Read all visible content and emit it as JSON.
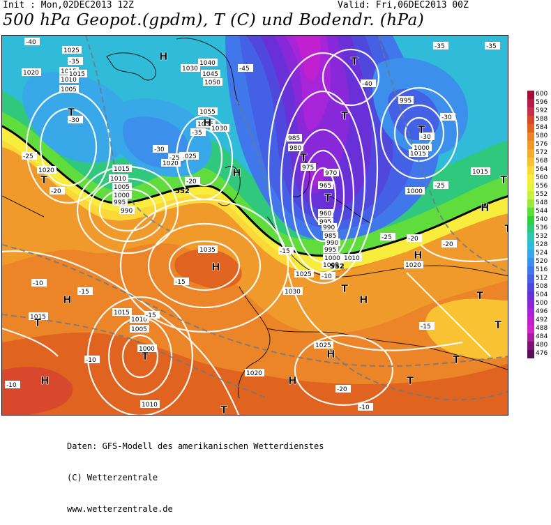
{
  "header": {
    "init": "Init : Mon,02DEC2013 12Z",
    "valid": "Valid: Fri,06DEC2013 00Z",
    "title": "500 hPa Geopot.(gpdm), T (C) und Bodendr. (hPa)"
  },
  "credits": [
    "Daten: GFS-Modell des amerikanischen Wetterdienstes",
    "(C) Wetterzentrale",
    "www.wetterzentrale.de"
  ],
  "legend": {
    "levels": [
      "600",
      "596",
      "592",
      "588",
      "584",
      "580",
      "576",
      "572",
      "568",
      "564",
      "560",
      "556",
      "552",
      "548",
      "544",
      "540",
      "536",
      "532",
      "528",
      "524",
      "520",
      "516",
      "512",
      "508",
      "504",
      "500",
      "496",
      "492",
      "488",
      "484",
      "480",
      "476"
    ],
    "colors": [
      "#a0103a",
      "#b81c48",
      "#c8304a",
      "#d8482c",
      "#e06420",
      "#ec8428",
      "#f09a2c",
      "#f4ac30",
      "#f8c232",
      "#fcd838",
      "#f8ec3c",
      "#e8f43c",
      "#c8f040",
      "#9ce840",
      "#60dc3c",
      "#30d038",
      "#30c87c",
      "#30c8b4",
      "#30bcd8",
      "#38a8e8",
      "#3c90ec",
      "#4078ec",
      "#4460e4",
      "#5048dc",
      "#6a30d8",
      "#8828d8",
      "#a824d8",
      "#c020d0",
      "#d024c8",
      "#a81ca0",
      "#7c1478",
      "#5a0c5a"
    ]
  },
  "map": {
    "pressure_labels": [
      "1025",
      "1020",
      "1015",
      "1010",
      "1005",
      "1030",
      "1040",
      "1045",
      "1050",
      "1055",
      "1035",
      "1025",
      "1020",
      "1015",
      "1010",
      "1005",
      "1000",
      "995",
      "990",
      "985",
      "980",
      "975",
      "970",
      "965",
      "960",
      "995",
      "990",
      "985",
      "990",
      "995",
      "1000",
      "1005",
      "1010",
      "1015",
      "1000",
      "995",
      "1000",
      "1015",
      "1020",
      "1030",
      "1035",
      "1030",
      "1025",
      "1020",
      "1015",
      "1010",
      "1005",
      "1000",
      "1015",
      "1010",
      "1025",
      "1020",
      "1015"
    ],
    "temperature_labels": [
      "-40",
      "-35",
      "-30",
      "-25",
      "-20",
      "-15",
      "-10",
      "-45",
      "-40",
      "-35",
      "-30",
      "-25",
      "-20",
      "-15",
      "-10",
      "-35",
      "-30",
      "-25",
      "-20",
      "-15",
      "-10",
      "-20",
      "-15",
      "-10",
      "-35",
      "-30",
      "-25",
      "-20",
      "-15",
      "-10"
    ],
    "centers": [
      {
        "label": "H"
      },
      {
        "label": "H"
      },
      {
        "label": "T"
      },
      {
        "label": "T"
      },
      {
        "label": "H"
      },
      {
        "label": "T"
      },
      {
        "label": "T"
      },
      {
        "label": "T"
      },
      {
        "label": "T"
      },
      {
        "label": "H"
      },
      {
        "label": "T"
      },
      {
        "label": "H"
      },
      {
        "label": "H"
      },
      {
        "label": "T"
      },
      {
        "label": "T"
      },
      {
        "label": "T"
      },
      {
        "label": "H"
      },
      {
        "label": "T"
      },
      {
        "label": "H"
      },
      {
        "label": "T"
      },
      {
        "label": "H"
      },
      {
        "label": "T"
      },
      {
        "label": "T"
      },
      {
        "label": "H"
      },
      {
        "label": "T"
      },
      {
        "label": "H"
      },
      {
        "label": "T"
      },
      {
        "label": "T"
      }
    ],
    "isoline_552_label": "552"
  }
}
